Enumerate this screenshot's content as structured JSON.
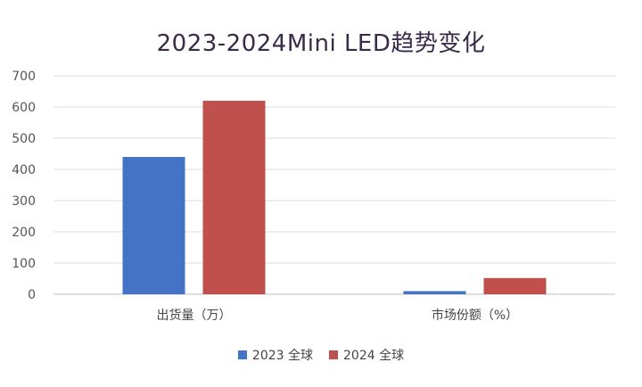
{
  "chart_data": {
    "type": "bar",
    "title": "2023-2024Mini LED趋势变化",
    "categories": [
      "出货量（万）",
      "市场份额（%）"
    ],
    "series": [
      {
        "name": "2023 全球",
        "values": [
          440,
          10
        ],
        "color": "#4472c4"
      },
      {
        "name": "2024 全球",
        "values": [
          620,
          52
        ],
        "color": "#c0504d"
      }
    ],
    "ylim": [
      0,
      700
    ],
    "yticks": [
      0,
      100,
      200,
      300,
      400,
      500,
      600,
      700
    ],
    "grid": true,
    "legend": "bottom"
  }
}
